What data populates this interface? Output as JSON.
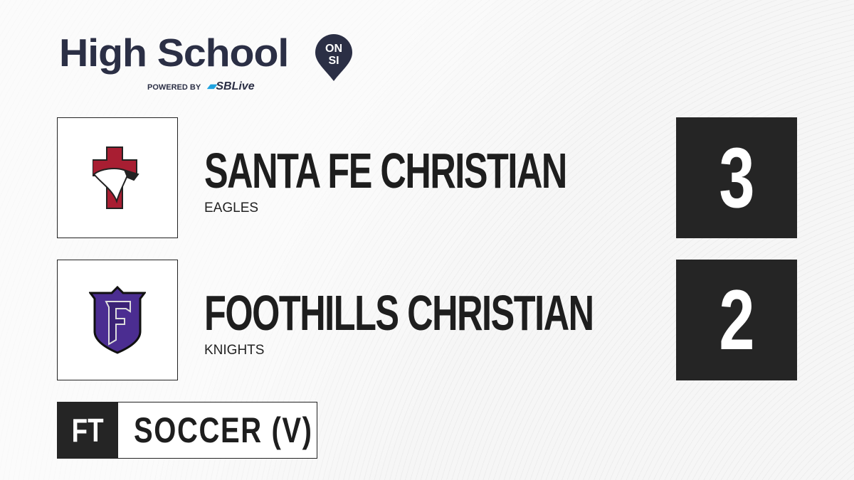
{
  "brand": {
    "title": "High School",
    "pin_text_top": "ON",
    "pin_text_bottom": "SI",
    "powered_by": "POWERED BY",
    "sponsor": "SBLive",
    "color": "#2b2f45",
    "sponsor_accent": "#1fa3e0"
  },
  "teams": [
    {
      "name": "SANTA FE CHRISTIAN",
      "mascot": "EAGLES",
      "score": "3",
      "logo": "eagle-cross-logo",
      "logo_color": "#a81e32"
    },
    {
      "name": "FOOTHILLS CHRISTIAN",
      "mascot": "KNIGHTS",
      "score": "2",
      "logo": "f-shield-logo",
      "logo_color": "#4b2d91"
    }
  ],
  "game": {
    "status": "FT",
    "sport": "SOCCER (V)"
  }
}
